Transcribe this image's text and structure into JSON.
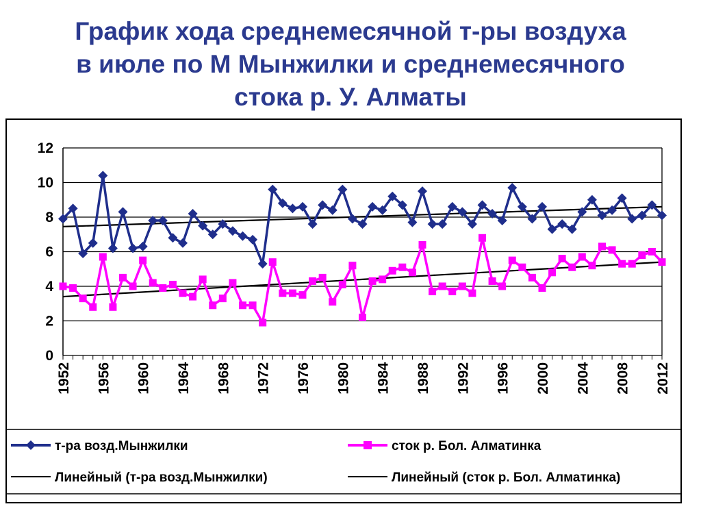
{
  "title": {
    "lines": [
      "График хода среднемесячной т-ры воздуха",
      "в июле по М Мынжилки и среднемесячного",
      "стока р. У. Алматы"
    ]
  },
  "colors": {
    "title": "#2b3a8f",
    "temp_series": "#1f2e8c",
    "flow_series": "#ff00ff",
    "trend": "#000000",
    "grid": "#000000"
  },
  "chart_data": {
    "type": "line",
    "title": "",
    "xlabel": "",
    "ylabel": "",
    "ylim": [
      0,
      12
    ],
    "y_ticks": [
      "0",
      "2",
      "4",
      "6",
      "8",
      "10",
      "12"
    ],
    "x_ticks": [
      "1952",
      "1956",
      "1960",
      "1964",
      "1968",
      "1972",
      "1976",
      "1980",
      "1984",
      "1988",
      "1992",
      "1996",
      "2000",
      "2004",
      "2008",
      "2012"
    ],
    "grid": true,
    "legend_position": "bottom",
    "x": [
      1952,
      1953,
      1954,
      1955,
      1956,
      1957,
      1958,
      1959,
      1960,
      1961,
      1962,
      1963,
      1964,
      1965,
      1966,
      1967,
      1968,
      1969,
      1970,
      1971,
      1972,
      1973,
      1974,
      1975,
      1976,
      1977,
      1978,
      1979,
      1980,
      1981,
      1982,
      1983,
      1984,
      1985,
      1986,
      1987,
      1988,
      1989,
      1990,
      1991,
      1992,
      1993,
      1994,
      1995,
      1996,
      1997,
      1998,
      1999,
      2000,
      2001,
      2002,
      2003,
      2004,
      2005,
      2006,
      2007,
      2008,
      2009,
      2010,
      2011,
      2012
    ],
    "series": [
      {
        "name": "т-ра возд.Мынжилки",
        "marker": "diamond",
        "values": [
          7.9,
          8.5,
          5.9,
          6.5,
          10.4,
          6.2,
          8.3,
          6.2,
          6.3,
          7.8,
          7.8,
          6.8,
          6.5,
          8.2,
          7.5,
          7.0,
          7.6,
          7.2,
          6.9,
          6.7,
          5.3,
          9.6,
          8.8,
          8.5,
          8.6,
          7.6,
          8.7,
          8.4,
          9.6,
          7.9,
          7.6,
          8.6,
          8.4,
          9.2,
          8.7,
          7.7,
          9.5,
          7.6,
          7.6,
          8.6,
          8.3,
          7.6,
          8.7,
          8.2,
          7.8,
          9.7,
          8.6,
          7.9,
          8.6,
          7.3,
          7.6,
          7.3,
          8.3,
          9.0,
          8.1,
          8.4,
          9.1,
          7.9,
          8.1,
          8.7,
          8.1
        ]
      },
      {
        "name": "сток р. Бол. Алматинка",
        "marker": "square",
        "values": [
          4.0,
          3.9,
          3.3,
          2.8,
          5.7,
          2.8,
          4.5,
          4.0,
          5.5,
          4.2,
          3.9,
          4.1,
          3.6,
          3.4,
          4.4,
          2.9,
          3.3,
          4.2,
          2.9,
          2.9,
          1.9,
          5.4,
          3.6,
          3.6,
          3.5,
          4.3,
          4.5,
          3.1,
          4.1,
          5.2,
          2.2,
          4.3,
          4.4,
          4.9,
          5.1,
          4.8,
          6.4,
          3.7,
          4.0,
          3.7,
          4.0,
          3.6,
          6.8,
          4.3,
          4.0,
          5.5,
          5.1,
          4.5,
          3.9,
          4.8,
          5.6,
          5.1,
          5.7,
          5.2,
          6.3,
          6.1,
          5.3,
          5.3,
          5.8,
          6.0,
          5.4
        ]
      }
    ],
    "trendlines": [
      {
        "name": "Линейный (т-ра возд.Мынжилки)",
        "from": [
          1952,
          7.45
        ],
        "to": [
          2012,
          8.6
        ]
      },
      {
        "name": "Линейный (сток р. Бол. Алматинка)",
        "from": [
          1952,
          3.4
        ],
        "to": [
          2012,
          5.4
        ]
      }
    ]
  },
  "legend": {
    "items": [
      "т-ра возд.Мынжилки",
      "сток р. Бол. Алматинка",
      "Линейный (т-ра возд.Мынжилки)",
      "Линейный (сток р. Бол. Алматинка)"
    ]
  }
}
